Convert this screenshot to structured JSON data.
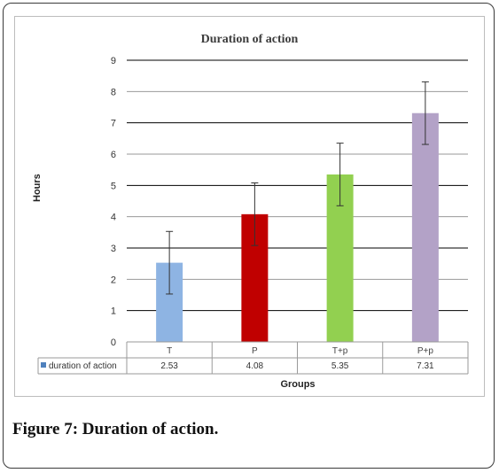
{
  "chart_data": {
    "type": "bar",
    "title": "Duration of action",
    "xlabel": "Groups",
    "ylabel": "Hours",
    "categories": [
      "T",
      "P",
      "T+p",
      "P+p"
    ],
    "series": [
      {
        "name": "duration of action",
        "values": [
          2.53,
          4.08,
          5.35,
          7.31
        ],
        "errors": [
          1.0,
          1.0,
          1.0,
          1.0
        ]
      }
    ],
    "bar_colors": [
      "#8eb4e3",
      "#c00000",
      "#92d050",
      "#b3a2c7"
    ],
    "legend_color": "#4f81bd",
    "ylim": [
      0,
      9
    ],
    "yticks": [
      "0",
      "1",
      "2",
      "3",
      "4",
      "5",
      "6",
      "7",
      "8",
      "9"
    ],
    "table_values": [
      "2.53",
      "4.08",
      "5.35",
      "7.31"
    ],
    "grid": true
  },
  "caption": "Figure 7: Duration of action."
}
